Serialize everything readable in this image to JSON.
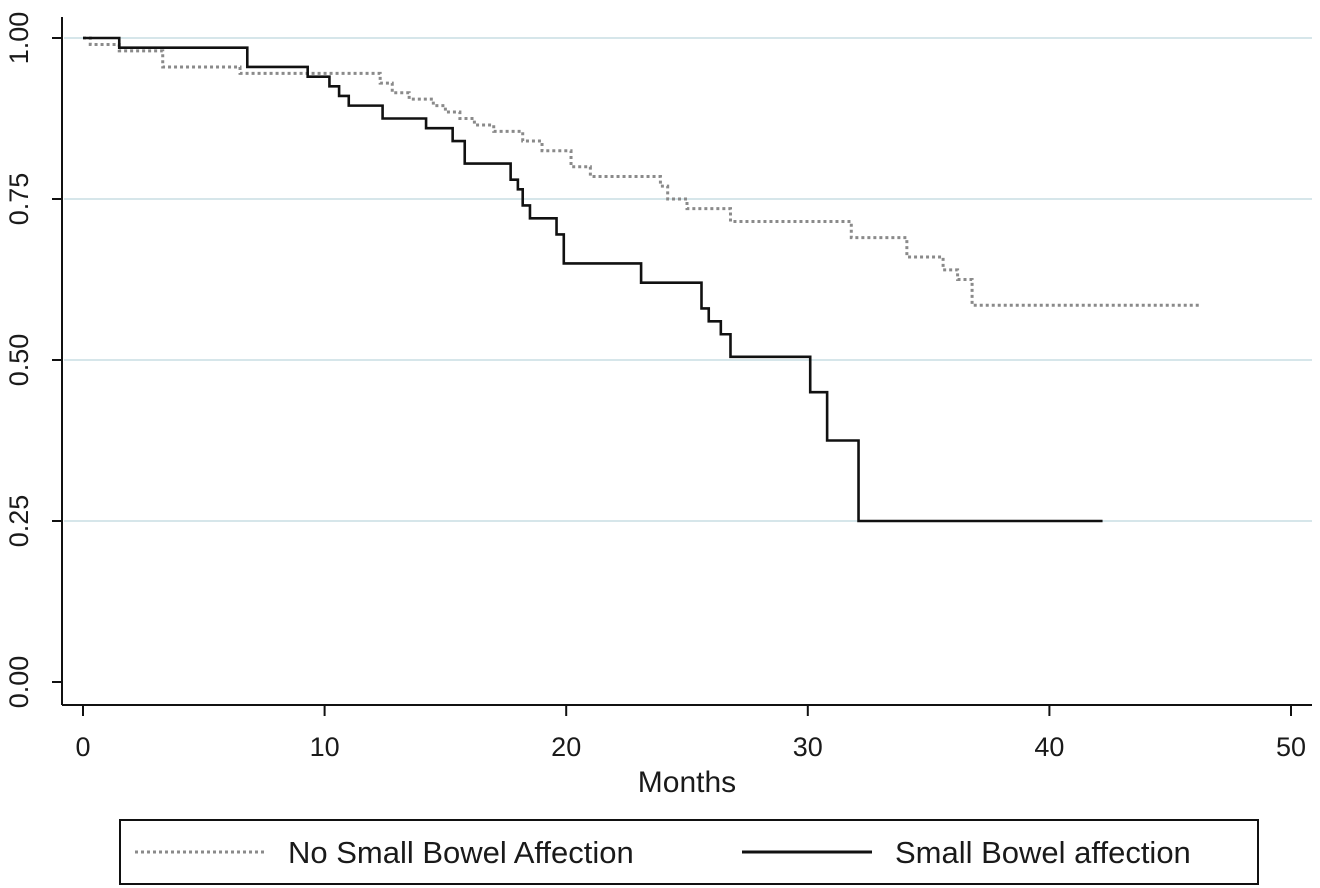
{
  "chart_data": {
    "type": "line",
    "subtype": "kaplan-meier-step",
    "title": "",
    "xlabel": "Months",
    "ylabel": "",
    "xlim": [
      0,
      50
    ],
    "ylim": [
      0,
      1
    ],
    "xticks": [
      0,
      10,
      20,
      30,
      40,
      50
    ],
    "xtick_labels": [
      "0",
      "10",
      "20",
      "30",
      "40",
      "50"
    ],
    "yticks": [
      0,
      0.25,
      0.5,
      0.75,
      1
    ],
    "ytick_labels": [
      "0.00",
      "0.25",
      "0.50",
      "0.75",
      "1.00"
    ],
    "grid": "horizontal",
    "legend_position": "bottom",
    "series": [
      {
        "name": "No Small Bowel Affection",
        "style": "dotted",
        "color": "#8a8a8a",
        "x": [
          0,
          0.3,
          1.5,
          3.3,
          6.5,
          9.3,
          12.3,
          12.8,
          13.5,
          14.5,
          15.0,
          15.6,
          16.2,
          17.0,
          18.2,
          19.0,
          20.2,
          21.0,
          23.9,
          24.2,
          25.0,
          26.8,
          31.8,
          34.1,
          35.6,
          36.2,
          36.8,
          46.3
        ],
        "y": [
          1.0,
          0.99,
          0.98,
          0.955,
          0.945,
          0.945,
          0.93,
          0.915,
          0.905,
          0.895,
          0.885,
          0.875,
          0.865,
          0.855,
          0.84,
          0.825,
          0.8,
          0.785,
          0.77,
          0.75,
          0.735,
          0.715,
          0.69,
          0.66,
          0.64,
          0.625,
          0.585,
          0.585
        ]
      },
      {
        "name": "Small Bowel affection",
        "style": "solid",
        "color": "#111111",
        "x": [
          0,
          1.5,
          6.8,
          9.3,
          10.2,
          10.6,
          11.0,
          12.4,
          14.2,
          15.3,
          15.8,
          17.7,
          18.0,
          18.2,
          18.5,
          19.6,
          19.9,
          23.1,
          25.6,
          25.9,
          26.4,
          26.8,
          30.1,
          30.8,
          32.1,
          42.2
        ],
        "y": [
          1.0,
          0.985,
          0.955,
          0.94,
          0.925,
          0.91,
          0.895,
          0.875,
          0.86,
          0.84,
          0.805,
          0.78,
          0.765,
          0.74,
          0.72,
          0.695,
          0.65,
          0.62,
          0.58,
          0.56,
          0.54,
          0.505,
          0.45,
          0.375,
          0.25,
          0.25
        ]
      }
    ]
  }
}
